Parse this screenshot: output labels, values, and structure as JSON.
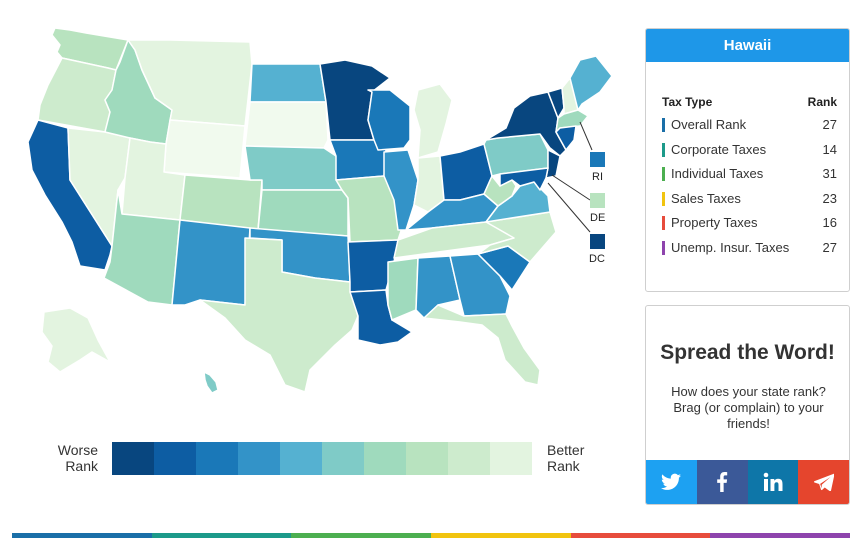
{
  "colors": {
    "scale": [
      "#08467f",
      "#0d5da3",
      "#1a78b8",
      "#3393c8",
      "#55b1d1",
      "#7fcbc7",
      "#9fdabd",
      "#b8e3bf",
      "#cdebcd",
      "#e3f4e0",
      "#f1faee"
    ],
    "panel_title_bg": "#1e97e8"
  },
  "legend": {
    "worse_label": "Worse\nRank",
    "better_label": "Better\nRank"
  },
  "small_states": [
    {
      "abbr": "RI",
      "color_level": 2
    },
    {
      "abbr": "DE",
      "color_level": 7
    },
    {
      "abbr": "DC",
      "color_level": 0
    }
  ],
  "states": {
    "WA": 7,
    "OR": 8,
    "CA": 1,
    "NV": 9,
    "ID": 6,
    "MT": 9,
    "WY": 10,
    "UT": 9,
    "AZ": 6,
    "CO": 7,
    "NM": 3,
    "ND": 4,
    "SD": 10,
    "NE": 5,
    "KS": 6,
    "OK": 3,
    "TX": 8,
    "MN": 0,
    "IA": 2,
    "MO": 7,
    "AR": 1,
    "LA": 1,
    "WI": 2,
    "IL": 3,
    "MI": 9,
    "IN": 9,
    "OH": 1,
    "KY": 3,
    "TN": 8,
    "MS": 6,
    "AL": 3,
    "GA": 3,
    "FL": 8,
    "SC": 2,
    "NC": 8,
    "VA": 4,
    "WV": 7,
    "PA": 5,
    "NY": 0,
    "VT": 0,
    "NH": 9,
    "ME": 4,
    "MA": 6,
    "CT": 1,
    "NJ": 0,
    "MD": 1,
    "AK": 9,
    "HI": 5
  },
  "info": {
    "title": "Hawaii",
    "col_type": "Tax Type",
    "col_rank": "Rank",
    "rows": [
      {
        "label": "Overall Rank",
        "rank": "27",
        "color": "#1a6fa8"
      },
      {
        "label": "Corporate Taxes",
        "rank": "14",
        "color": "#1c9a8a"
      },
      {
        "label": "Individual Taxes",
        "rank": "31",
        "color": "#4caf50"
      },
      {
        "label": "Sales Taxes",
        "rank": "23",
        "color": "#f1c40f"
      },
      {
        "label": "Property Taxes",
        "rank": "16",
        "color": "#e74c3c"
      },
      {
        "label": "Unemp. Insur. Taxes",
        "rank": "27",
        "color": "#8e44ad"
      }
    ]
  },
  "share": {
    "title": "Spread the Word!",
    "text": "How does your state rank? Brag (or complain) to your friends!",
    "buttons": [
      {
        "name": "twitter",
        "icon": "twitter-icon",
        "color": "#1da1f2"
      },
      {
        "name": "facebook",
        "icon": "facebook-icon",
        "color": "#3b5998"
      },
      {
        "name": "linkedin",
        "icon": "linkedin-icon",
        "color": "#0e76a8"
      },
      {
        "name": "telegram",
        "icon": "send-icon",
        "color": "#e5452d"
      }
    ]
  },
  "bottom_strip": [
    "#1a6fa8",
    "#1c9a8a",
    "#4caf50",
    "#f1c40f",
    "#e74c3c",
    "#8e44ad"
  ]
}
